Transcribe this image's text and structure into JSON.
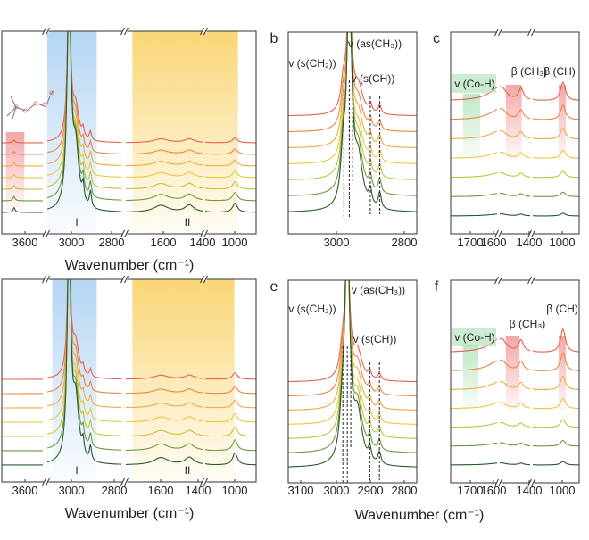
{
  "chart_data": [
    {
      "id": "a",
      "panel_label": "",
      "type": "line",
      "xlabel": "Wavenumber (cm⁻¹)",
      "xticks": [
        "3600",
        "3000",
        "2800",
        "1600",
        "1400",
        "1000"
      ],
      "region_labels": [
        "I",
        "II"
      ],
      "annotations": [],
      "inset": "molecule structure",
      "shaded": [
        {
          "x": [
            3050,
            2850
          ],
          "color": "#9cc8f0"
        },
        {
          "x": [
            1720,
            950
          ],
          "color": "#f7c948"
        },
        {
          "x": [
            3680,
            3590
          ],
          "color": "#f08a8a",
          "partial": true
        }
      ],
      "peaks": [
        [
          2962,
          1.0,
          9
        ],
        [
          2935,
          0.25,
          15
        ],
        [
          2905,
          0.07,
          5
        ],
        [
          2875,
          0.07,
          5
        ],
        [
          3640,
          0.02,
          6
        ],
        [
          1590,
          0.03,
          40
        ],
        [
          1460,
          0.03,
          25
        ],
        [
          990,
          0.04,
          40
        ]
      ],
      "trace_scales": [
        0.55,
        0.6,
        0.65,
        0.7,
        0.8,
        0.9,
        1.0
      ]
    },
    {
      "id": "b",
      "panel_label": "b",
      "type": "line",
      "xlabel": "",
      "xticks": [
        "3000",
        "2800"
      ],
      "annotations": [
        "v (s(CH₂))",
        "v (as(CH₃))",
        "v (s(CH))"
      ],
      "dashed_lines": [
        2978,
        2962,
        2952,
        2900,
        2872
      ],
      "shaded": [],
      "peaks": [
        [
          2962,
          1.0,
          8
        ],
        [
          2980,
          0.2,
          8
        ],
        [
          2935,
          0.2,
          15
        ],
        [
          2900,
          0.07,
          5
        ],
        [
          2872,
          0.07,
          5
        ]
      ],
      "trace_scales": [
        0.55,
        0.6,
        0.65,
        0.7,
        0.8,
        0.9,
        1.0
      ]
    },
    {
      "id": "c",
      "panel_label": "c",
      "type": "line",
      "xlabel": "",
      "xticks": [
        "1700",
        "1600",
        "1400",
        "1000"
      ],
      "annotations": [
        "v (Co-H)",
        "β (CH₃)",
        "β (CH)"
      ],
      "shaded": [
        {
          "x": [
            1710,
            1655
          ],
          "color": "#a8e0b0"
        },
        {
          "x": [
            1560,
            1455
          ],
          "color": "#f08a8a"
        },
        {
          "x": [
            1050,
            950
          ],
          "color": "#f08a8a"
        }
      ],
      "peaks": [
        [
          1590,
          0.06,
          40
        ],
        [
          1460,
          0.05,
          20
        ],
        [
          990,
          0.08,
          40
        ]
      ],
      "trace_scales": [
        1.0,
        0.8,
        0.6,
        0.45,
        0.35,
        0.25,
        0.15
      ]
    },
    {
      "id": "d",
      "panel_label": "",
      "type": "line",
      "xlabel": "Wavenumber (cm⁻¹)",
      "xticks": [
        "3600",
        "3000",
        "2800",
        "1600",
        "1400",
        "1000"
      ],
      "region_labels": [
        "I",
        "II"
      ],
      "annotations": [],
      "shaded": [
        {
          "x": [
            3030,
            2850
          ],
          "color": "#9cc8f0"
        },
        {
          "x": [
            1720,
            1000
          ],
          "color": "#f7c948"
        }
      ],
      "peaks": [
        [
          2962,
          1.0,
          8
        ],
        [
          2935,
          0.25,
          15
        ],
        [
          2905,
          0.06,
          5
        ],
        [
          2875,
          0.06,
          5
        ],
        [
          1590,
          0.03,
          40
        ],
        [
          1460,
          0.03,
          25
        ],
        [
          990,
          0.05,
          40
        ]
      ],
      "trace_scales": [
        0.55,
        0.6,
        0.65,
        0.7,
        0.8,
        0.9,
        1.0
      ]
    },
    {
      "id": "e",
      "panel_label": "e",
      "type": "line",
      "xlabel": "Wavenumber (cm⁻¹)",
      "xticks": [
        "3100",
        "3000",
        "2900",
        "2800"
      ],
      "annotations": [
        "v (s(CH₂))",
        "v (as(CH₃))",
        "v (s(CH))"
      ],
      "dashed_lines": [
        2978,
        2965,
        2955,
        2900,
        2872
      ],
      "shaded": [],
      "peaks": [
        [
          2965,
          1.0,
          8
        ],
        [
          2980,
          0.15,
          8
        ],
        [
          2935,
          0.2,
          15
        ],
        [
          2900,
          0.06,
          4
        ],
        [
          2872,
          0.05,
          5
        ]
      ],
      "trace_scales": [
        0.55,
        0.6,
        0.65,
        0.7,
        0.8,
        0.9,
        1.0
      ]
    },
    {
      "id": "f",
      "panel_label": "f",
      "type": "line",
      "xlabel": "",
      "xticks": [
        "1700",
        "1600",
        "1400",
        "1000"
      ],
      "annotations": [
        "v (Co-H)",
        "β (CH₃)",
        "β (CH)"
      ],
      "shaded": [
        {
          "x": [
            1710,
            1660
          ],
          "color": "#a8e0b0"
        },
        {
          "x": [
            1560,
            1470
          ],
          "color": "#f08a8a"
        },
        {
          "x": [
            1050,
            950
          ],
          "color": "#f08a8a"
        }
      ],
      "peaks": [
        [
          1590,
          0.06,
          40
        ],
        [
          1460,
          0.05,
          20
        ],
        [
          990,
          0.1,
          40
        ]
      ],
      "trace_scales": [
        1.0,
        0.8,
        0.6,
        0.45,
        0.35,
        0.25,
        0.15
      ]
    }
  ],
  "trace_colors": [
    "#e8604c",
    "#ee8540",
    "#f0aa40",
    "#ecc640",
    "#c2c23e",
    "#6e9a3c",
    "#2a5a2e"
  ]
}
